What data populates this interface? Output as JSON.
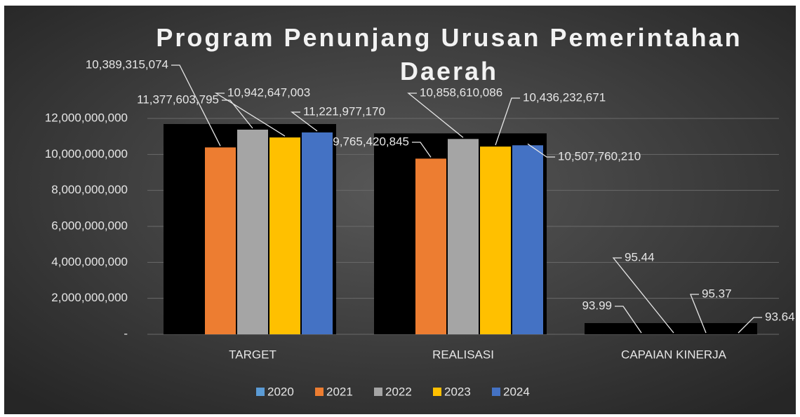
{
  "chart_data": {
    "type": "bar",
    "title": "Program Penunjang Urusan Pemerintahan Daerah",
    "categories": [
      "TARGET",
      "REALISASI",
      "CAPAIAN KINERJA"
    ],
    "series": [
      {
        "name": "2020",
        "color": "#5b9bd5",
        "values": [
          0,
          0,
          0
        ]
      },
      {
        "name": "2021",
        "color": "#ed7d31",
        "values": [
          10389315074,
          9765420845,
          93.99
        ],
        "value_labels": [
          "10,389,315,074",
          "9,765,420,845",
          "93.99"
        ]
      },
      {
        "name": "2022",
        "color": "#a5a5a5",
        "values": [
          11377603795,
          10858610086,
          95.44
        ],
        "value_labels": [
          "11,377,603,795",
          "10,858,610,086",
          "95.44"
        ]
      },
      {
        "name": "2023",
        "color": "#ffc000",
        "values": [
          10942647003,
          10436232671,
          95.37
        ],
        "value_labels": [
          "10,942,647,003",
          "10,436,232,671",
          "95.37"
        ]
      },
      {
        "name": "2024",
        "color": "#4472c4",
        "values": [
          11221977170,
          10507760210,
          93.64
        ],
        "value_labels": [
          "11,221,977,170",
          "10,507,760,210",
          "93.64"
        ]
      }
    ],
    "ylim": [
      0,
      12000000000
    ],
    "yticks": [
      {
        "value": 0,
        "label": "-"
      },
      {
        "value": 2000000000,
        "label": "2,000,000,000"
      },
      {
        "value": 4000000000,
        "label": "4,000,000,000"
      },
      {
        "value": 6000000000,
        "label": "6,000,000,000"
      },
      {
        "value": 8000000000,
        "label": "8,000,000,000"
      },
      {
        "value": 10000000000,
        "label": "10,000,000,000"
      },
      {
        "value": 12000000000,
        "label": "12,000,000,000"
      }
    ],
    "grid": true,
    "legend": "bottom"
  }
}
